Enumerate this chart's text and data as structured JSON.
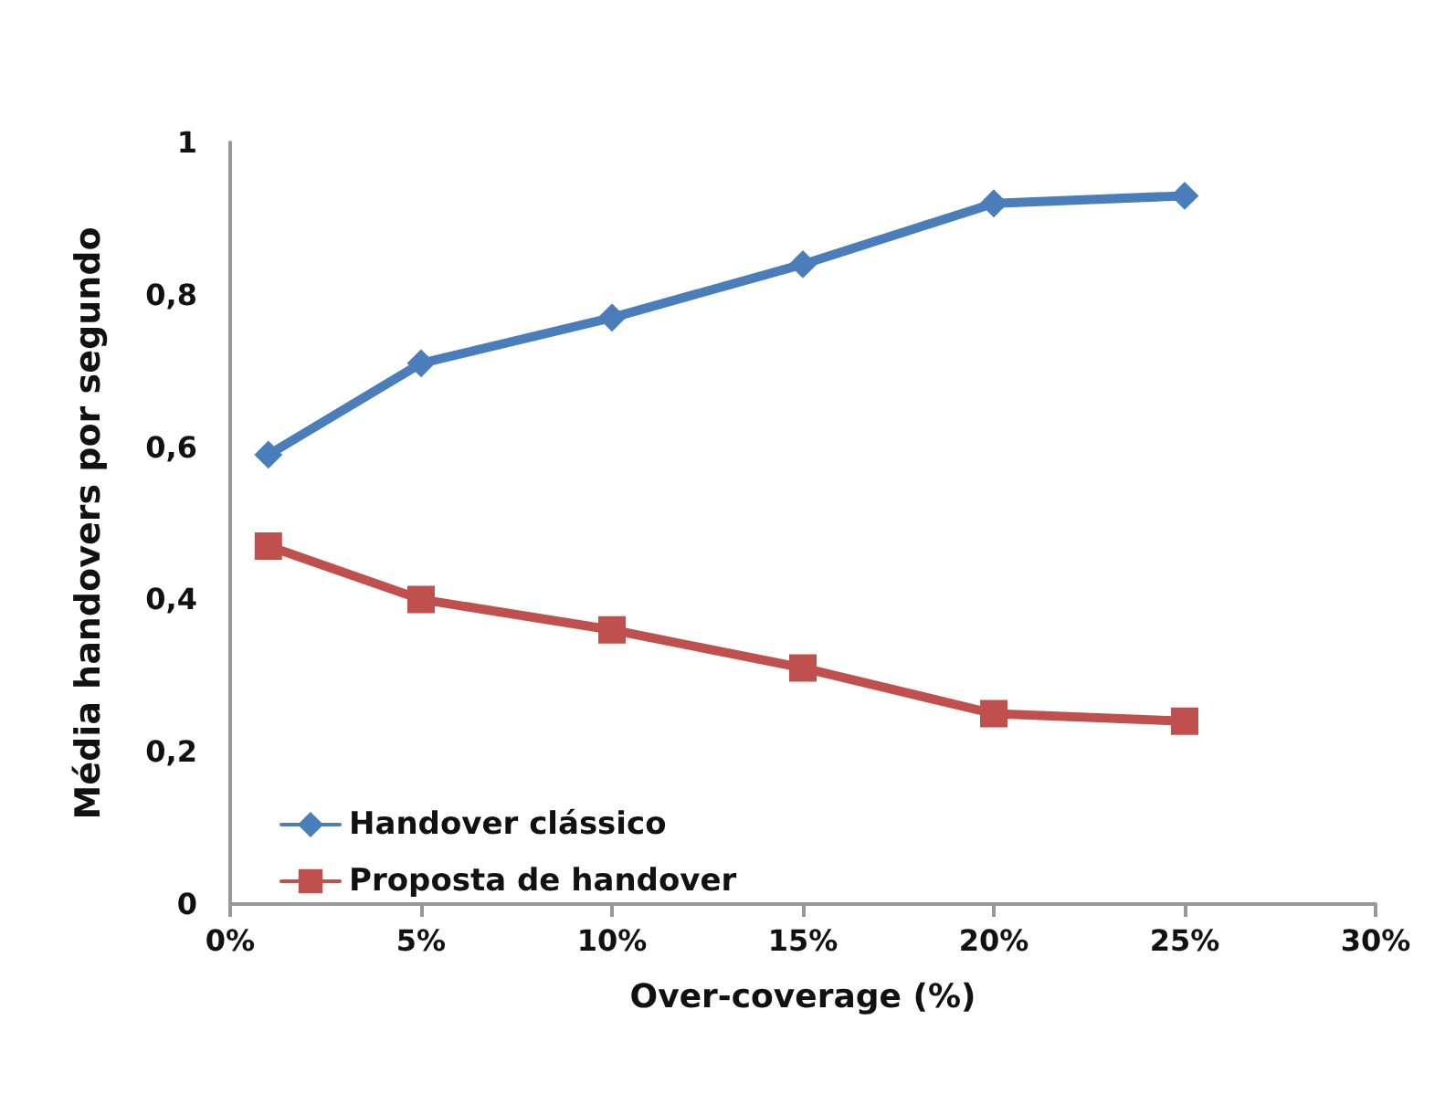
{
  "chart_data": {
    "type": "line",
    "xlabel": "Over-coverage (%)",
    "ylabel": "Média handovers por segundo",
    "x": [
      1,
      5,
      10,
      15,
      20,
      25
    ],
    "series": [
      {
        "name": "Handover clássico",
        "color": "#4a7ebb",
        "marker": "diamond",
        "values": [
          0.59,
          0.71,
          0.77,
          0.84,
          0.92,
          0.93
        ]
      },
      {
        "name": "Proposta de handover",
        "color": "#c0504d",
        "marker": "square",
        "values": [
          0.47,
          0.4,
          0.36,
          0.31,
          0.25,
          0.24
        ]
      }
    ],
    "xlim": [
      0,
      30
    ],
    "xticks": [
      {
        "value": 0,
        "label": "0%"
      },
      {
        "value": 5,
        "label": "5%"
      },
      {
        "value": 10,
        "label": "10%"
      },
      {
        "value": 15,
        "label": "15%"
      },
      {
        "value": 20,
        "label": "20%"
      },
      {
        "value": 25,
        "label": "25%"
      },
      {
        "value": 30,
        "label": "30%"
      }
    ],
    "ylim": [
      0,
      1
    ],
    "yticks": [
      0,
      {
        "value": 0.2,
        "label": "0,2"
      },
      {
        "value": 0.4,
        "label": "0,4"
      },
      {
        "value": 0.6,
        "label": "0,6"
      },
      {
        "value": 0.8,
        "label": "0,8"
      },
      1
    ],
    "grid": false,
    "legend": "bottom left"
  }
}
